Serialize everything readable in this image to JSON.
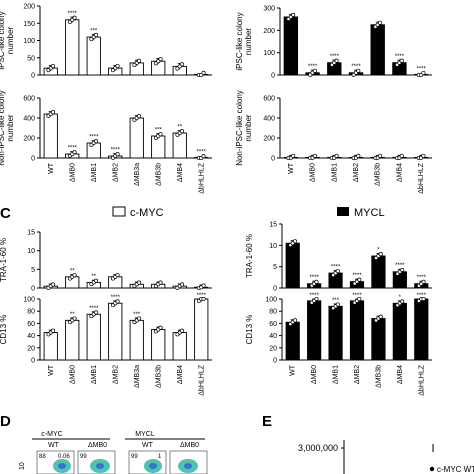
{
  "labels": {
    "C": "C",
    "D": "D",
    "E": "E"
  },
  "legend": {
    "cmyc": {
      "label": "c-MYC",
      "color": "#ffffff"
    },
    "mycl": {
      "label": "MYCL",
      "color": "#000000"
    }
  },
  "panel_d": {
    "cmyc_title": "c-MYC",
    "mycl_title": "MYCL",
    "wt_label": "WT",
    "mb0_label": "ΔMB0",
    "nums": [
      "88",
      "0.06",
      "99",
      "99",
      "1"
    ],
    "yaxis_tick": "10"
  },
  "panel_e": {
    "ytick": "3,000,000",
    "legend_entry": "c-MYC WT"
  },
  "chart_data": [
    {
      "type": "bar",
      "id": "b-cmyc-ipsc",
      "ylabel": "iPSC-like colony number",
      "ylim": [
        0,
        200
      ],
      "yticks": [
        0,
        50,
        100,
        150,
        200
      ],
      "show_ticklabels": true,
      "categories": [
        "WT",
        "ΔMB0",
        "ΔMB1",
        "ΔMB2",
        "ΔMB3a",
        "ΔMB3b",
        "ΔMB4",
        "ΔbHLHLZ"
      ],
      "values": [
        20,
        160,
        110,
        20,
        35,
        40,
        25,
        0
      ],
      "stars": [
        "",
        "****",
        "***",
        "",
        "",
        "",
        "",
        ""
      ],
      "fill": "#ffffff"
    },
    {
      "type": "bar",
      "id": "b-cmyc-non",
      "ylabel": "Non-iPSC-like colony number",
      "ylim": [
        0,
        600
      ],
      "yticks": [
        0,
        200,
        400,
        600
      ],
      "show_ticklabels": true,
      "categories": [
        "WT",
        "ΔMB0",
        "ΔMB1",
        "ΔMB2",
        "ΔMB3a",
        "ΔMB3b",
        "ΔMB4",
        "ΔbHLHLZ"
      ],
      "values": [
        440,
        40,
        150,
        20,
        400,
        220,
        250,
        0
      ],
      "stars": [
        "",
        "****",
        "****",
        "****",
        "",
        "***",
        "**",
        "****"
      ],
      "fill": "#ffffff"
    },
    {
      "type": "bar",
      "id": "b-mycl-ipsc",
      "ylabel": "iPSC-like colony number",
      "ylim": [
        0,
        300
      ],
      "yticks": [
        0,
        100,
        200,
        300
      ],
      "show_ticklabels": true,
      "categories": [
        "WT",
        "ΔMB0",
        "ΔMB1",
        "ΔMB2",
        "ΔMB3b",
        "ΔMB4",
        "ΔbHLHLZ"
      ],
      "values": [
        260,
        10,
        55,
        10,
        225,
        55,
        0
      ],
      "stars": [
        "",
        "****",
        "****",
        "****",
        "",
        "****",
        "****"
      ],
      "fill": "#000000"
    },
    {
      "type": "bar",
      "id": "b-mycl-non",
      "ylabel": "Non-iPSC-like colony number",
      "ylim": [
        0,
        600
      ],
      "yticks": [
        0,
        200,
        400,
        600
      ],
      "show_ticklabels": true,
      "categories": [
        "WT",
        "ΔMB0",
        "ΔMB1",
        "ΔMB2",
        "ΔMB3b",
        "ΔMB4",
        "ΔbHLHLZ"
      ],
      "values": [
        3,
        3,
        3,
        3,
        3,
        3,
        3
      ],
      "stars": [
        "",
        "",
        "",
        "",
        "",
        "",
        ""
      ],
      "fill": "#000000"
    },
    {
      "type": "bar",
      "id": "c-cmyc-tra",
      "ylabel": "TRA-1-60 %",
      "ylim": [
        0,
        15
      ],
      "yticks": [
        0,
        5,
        10,
        15
      ],
      "show_ticklabels": true,
      "categories": [
        "WT",
        "ΔMB0",
        "ΔMB1",
        "ΔMB2",
        "ΔMB3a",
        "ΔMB3b",
        "ΔMB4",
        "ΔbHLHLZ"
      ],
      "values": [
        0.5,
        3,
        1.5,
        3,
        1,
        1,
        0.5,
        0.2
      ],
      "stars": [
        "",
        "**",
        "**",
        "",
        "",
        "",
        "",
        ""
      ],
      "fill": "#ffffff"
    },
    {
      "type": "bar",
      "id": "c-cmyc-cd13",
      "ylabel": "CD13 %",
      "ylim": [
        0,
        100
      ],
      "yticks": [
        0,
        20,
        40,
        60,
        80,
        100
      ],
      "show_ticklabels": true,
      "categories": [
        "WT",
        "ΔMB0",
        "ΔMB1",
        "ΔMB2",
        "ΔMB3a",
        "ΔMB3b",
        "ΔMB4",
        "ΔbHLHLZ"
      ],
      "values": [
        45,
        65,
        75,
        93,
        65,
        50,
        45,
        100
      ],
      "stars": [
        "",
        "**",
        "****",
        "****",
        "***",
        "",
        "",
        "****"
      ],
      "fill": "#ffffff"
    },
    {
      "type": "bar",
      "id": "c-mycl-tra",
      "ylabel": "TRA-1-60 %",
      "ylim": [
        0,
        15
      ],
      "yticks": [
        0,
        5,
        10,
        15
      ],
      "show_ticklabels": true,
      "categories": [
        "WT",
        "ΔMB0",
        "ΔMB1",
        "ΔMB2",
        "ΔMB3b",
        "ΔMB4",
        "ΔbHLHLZ"
      ],
      "values": [
        10.5,
        1,
        3.5,
        1.5,
        7.5,
        3.8,
        1
      ],
      "stars": [
        "",
        "****",
        "****",
        "****",
        "*",
        "****",
        "****"
      ],
      "fill": "#000000"
    },
    {
      "type": "bar",
      "id": "c-mycl-cd13",
      "ylabel": "CD13 %",
      "ylim": [
        0,
        100
      ],
      "yticks": [
        0,
        20,
        40,
        60,
        80,
        100
      ],
      "show_ticklabels": true,
      "categories": [
        "WT",
        "ΔMB0",
        "ΔMB1",
        "ΔMB2",
        "ΔMB3b",
        "ΔMB4",
        "ΔbHLHLZ"
      ],
      "values": [
        62,
        97,
        88,
        97,
        68,
        93,
        100
      ],
      "stars": [
        "",
        "****",
        "***",
        "****",
        "",
        "*",
        "****"
      ],
      "fill": "#000000"
    }
  ]
}
